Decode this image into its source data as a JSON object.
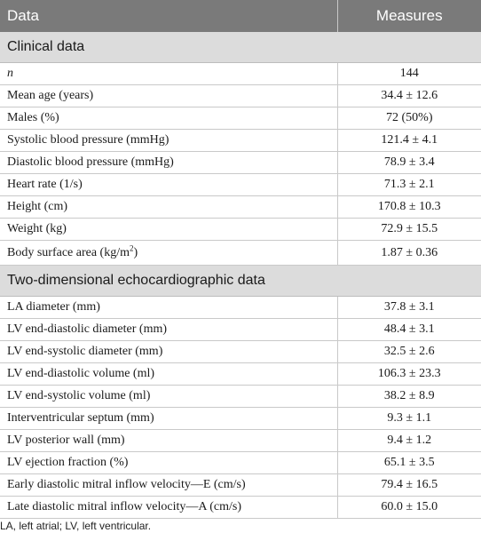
{
  "header": {
    "col_data": "Data",
    "col_measures": "Measures"
  },
  "sections": [
    {
      "title": "Clinical data",
      "rows": [
        {
          "label": "n",
          "value": "144"
        },
        {
          "label": "Mean age (years)",
          "value": "34.4 ± 12.6"
        },
        {
          "label": "Males (%)",
          "value": "72 (50%)"
        },
        {
          "label": "Systolic blood pressure (mmHg)",
          "value": "121.4 ± 4.1"
        },
        {
          "label": "Diastolic blood pressure (mmHg)",
          "value": "78.9 ± 3.4"
        },
        {
          "label": "Heart rate (1/s)",
          "value": "71.3 ± 2.1"
        },
        {
          "label": "Height (cm)",
          "value": "170.8 ± 10.3"
        },
        {
          "label": "Weight (kg)",
          "value": "72.9 ± 15.5"
        },
        {
          "label_pre": "Body surface area (kg/m",
          "label_sup": "2",
          "label_post": ")",
          "value": "1.87 ± 0.36"
        }
      ]
    },
    {
      "title": "Two-dimensional echocardiographic data",
      "rows": [
        {
          "label": "LA diameter (mm)",
          "value": "37.8 ± 3.1"
        },
        {
          "label": "LV end-diastolic diameter (mm)",
          "value": "48.4 ± 3.1"
        },
        {
          "label": "LV end-systolic diameter (mm)",
          "value": "32.5 ± 2.6"
        },
        {
          "label": "LV end-diastolic volume (ml)",
          "value": "106.3 ± 23.3"
        },
        {
          "label": "LV end-systolic volume (ml)",
          "value": "38.2 ± 8.9"
        },
        {
          "label": "Interventricular septum (mm)",
          "value": "9.3 ± 1.1"
        },
        {
          "label": "LV posterior wall (mm)",
          "value": "9.4 ± 1.2"
        },
        {
          "label": "LV ejection fraction (%)",
          "value": "65.1 ± 3.5"
        },
        {
          "label": "Early diastolic mitral inflow velocity—E (cm/s)",
          "value": "79.4 ± 16.5"
        },
        {
          "label": "Late diastolic mitral inflow velocity—A (cm/s)",
          "value": "60.0 ± 15.0"
        }
      ]
    }
  ],
  "footnote": "LA, left atrial; LV, left ventricular."
}
